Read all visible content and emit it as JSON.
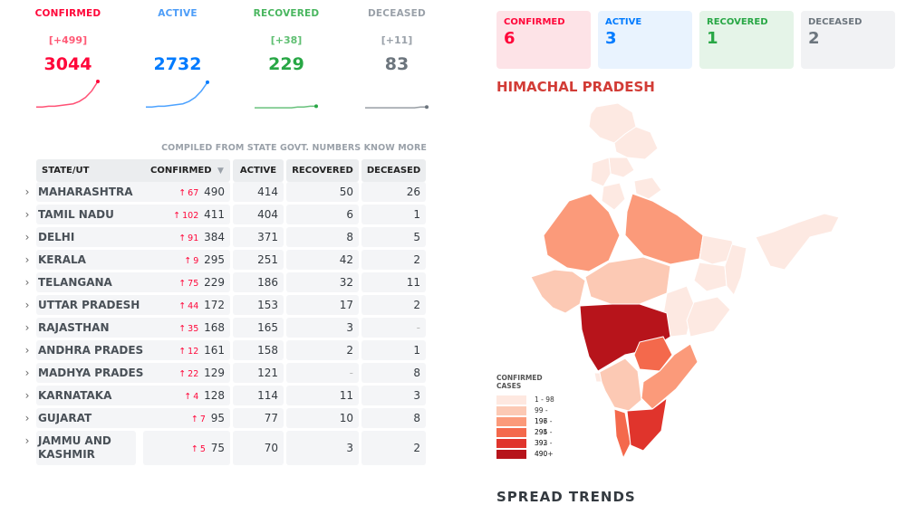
{
  "summary": {
    "confirmed": {
      "label": "CONFIRMED",
      "delta": "[+499]",
      "value": "3044",
      "color": "#ff073a",
      "spark": [
        2,
        2,
        3,
        3,
        4,
        5,
        6,
        9,
        14,
        22,
        34
      ]
    },
    "active": {
      "label": "ACTIVE",
      "delta": "",
      "value": "2732",
      "color": "#007bff",
      "spark": [
        2,
        2,
        3,
        3,
        4,
        5,
        6,
        9,
        14,
        22,
        33
      ]
    },
    "recovered": {
      "label": "RECOVERED",
      "delta": "[+38]",
      "value": "229",
      "color": "#28a745",
      "spark": [
        1,
        1,
        1,
        1,
        1,
        1,
        1,
        2,
        2,
        3,
        3
      ]
    },
    "deceased": {
      "label": "DECEASED",
      "delta": "[+11]",
      "value": "83",
      "color": "#6c757d",
      "spark": [
        1,
        1,
        1,
        1,
        1,
        1,
        1,
        1,
        1,
        2,
        2
      ]
    }
  },
  "compiled_note": "COMPILED FROM STATE GOVT. NUMBERS KNOW MORE",
  "table": {
    "headers": {
      "state": "STATE/UT",
      "confirmed": "CONFIRMED",
      "active": "ACTIVE",
      "recovered": "RECOVERED",
      "deceased": "DECEASED"
    },
    "sort_icon": "sort-down-icon",
    "rows": [
      {
        "state": "MAHARASHTRA",
        "delta": "67",
        "confirmed": "490",
        "active": "414",
        "recovered": "50",
        "deceased": "26"
      },
      {
        "state": "TAMIL NADU",
        "delta": "102",
        "confirmed": "411",
        "active": "404",
        "recovered": "6",
        "deceased": "1"
      },
      {
        "state": "DELHI",
        "delta": "91",
        "confirmed": "384",
        "active": "371",
        "recovered": "8",
        "deceased": "5"
      },
      {
        "state": "KERALA",
        "delta": "9",
        "confirmed": "295",
        "active": "251",
        "recovered": "42",
        "deceased": "2"
      },
      {
        "state": "TELANGANA",
        "delta": "75",
        "confirmed": "229",
        "active": "186",
        "recovered": "32",
        "deceased": "11"
      },
      {
        "state": "UTTAR PRADESH",
        "delta": "44",
        "confirmed": "172",
        "active": "153",
        "recovered": "17",
        "deceased": "2"
      },
      {
        "state": "RAJASTHAN",
        "delta": "35",
        "confirmed": "168",
        "active": "165",
        "recovered": "3",
        "deceased": "-"
      },
      {
        "state": "ANDHRA PRADESH",
        "delta": "12",
        "confirmed": "161",
        "active": "158",
        "recovered": "2",
        "deceased": "1"
      },
      {
        "state": "MADHYA PRADESH",
        "delta": "22",
        "confirmed": "129",
        "active": "121",
        "recovered": "-",
        "deceased": "8"
      },
      {
        "state": "KARNATAKA",
        "delta": "4",
        "confirmed": "128",
        "active": "114",
        "recovered": "11",
        "deceased": "3"
      },
      {
        "state": "GUJARAT",
        "delta": "7",
        "confirmed": "95",
        "active": "77",
        "recovered": "10",
        "deceased": "8"
      },
      {
        "state": "JAMMU AND KASHMIR",
        "delta": "5",
        "confirmed": "75",
        "active": "70",
        "recovered": "3",
        "deceased": "2"
      }
    ]
  },
  "state_panel": {
    "boxes": [
      {
        "label": "CONFIRMED",
        "value": "6",
        "fg": "#ff073a",
        "bg": "#fde3e7"
      },
      {
        "label": "ACTIVE",
        "value": "3",
        "fg": "#007bff",
        "bg": "#e9f3fe"
      },
      {
        "label": "RECOVERED",
        "value": "1",
        "fg": "#28a745",
        "bg": "#e5f4e8"
      },
      {
        "label": "DECEASED",
        "value": "2",
        "fg": "#6c757d",
        "bg": "#f1f2f4"
      }
    ],
    "region_title": "HIMACHAL PRADESH",
    "legend_title": "CONFIRMED CASES",
    "legend": [
      {
        "range": "1 - 98",
        "color": "#fee8e0"
      },
      {
        "range": "99 - 196",
        "color": "#fcc9b4"
      },
      {
        "range": "197 - 294",
        "color": "#fb9a7a"
      },
      {
        "range": "295 - 392",
        "color": "#f4694c"
      },
      {
        "range": "393 - 490",
        "color": "#e0342c"
      },
      {
        "range": "490+",
        "color": "#b7141b"
      }
    ],
    "next_section": "SPREAD TRENDS"
  }
}
